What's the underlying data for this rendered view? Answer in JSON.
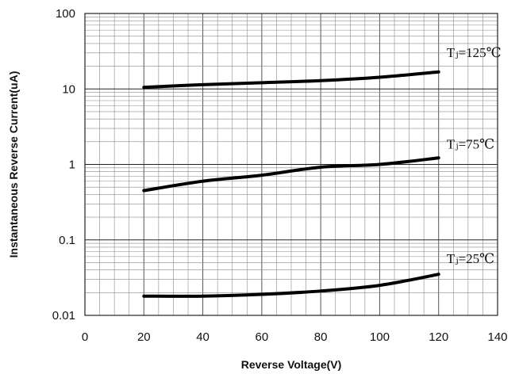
{
  "chart_data": {
    "type": "line",
    "title": "",
    "xlabel": "Reverse Voltage(V)",
    "ylabel": "Instantaneous Reverse Current(uA)",
    "xlim": [
      0,
      140
    ],
    "ylim": [
      0.01,
      100
    ],
    "y_scale": "log",
    "grid": true,
    "legend": "none",
    "x_ticks": [
      "0",
      "20",
      "40",
      "60",
      "80",
      "100",
      "120",
      "140"
    ],
    "y_ticks": [
      "0.01",
      "0.1",
      "1",
      "10",
      "100"
    ],
    "line_color": "#000000",
    "series": [
      {
        "name": "Tⱼ=125℃",
        "x": [
          20,
          40,
          60,
          80,
          100,
          120
        ],
        "y": [
          10.5,
          11.4,
          12.1,
          12.9,
          14.3,
          16.8
        ]
      },
      {
        "name": "Tⱼ=75℃",
        "x": [
          20,
          40,
          60,
          80,
          100,
          120
        ],
        "y": [
          0.45,
          0.6,
          0.72,
          0.92,
          1.0,
          1.22
        ]
      },
      {
        "name": "Tⱼ=25℃",
        "x": [
          20,
          40,
          60,
          80,
          100,
          120
        ],
        "y": [
          0.018,
          0.018,
          0.019,
          0.021,
          0.025,
          0.035
        ]
      }
    ]
  }
}
